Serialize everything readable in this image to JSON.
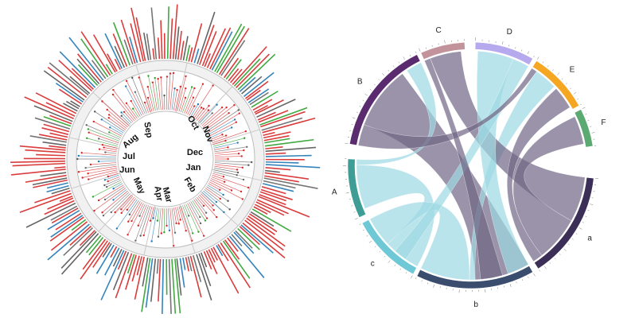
{
  "left_diagram": {
    "months": [
      "Oct",
      "Nov",
      "Dec",
      "Jan",
      "Feb",
      "Mar",
      "Apr",
      "May",
      "Jun",
      "Jul",
      "Aug",
      "Sep"
    ],
    "palette": [
      "#d62728",
      "#d62728",
      "#d62728",
      "#555555",
      "#1f77b4",
      "#2ca02c",
      "#d62728",
      "#666666"
    ]
  },
  "right_diagram": {
    "segments": [
      {
        "label": "A",
        "color": "#3e9d95"
      },
      {
        "label": "B",
        "color": "#5a2b6e"
      },
      {
        "label": "C",
        "color": "#c3939c"
      },
      {
        "label": "D",
        "color": "#b6a9ee"
      },
      {
        "label": "E",
        "color": "#f5a623"
      },
      {
        "label": "F",
        "color": "#5aaa72"
      },
      {
        "label": "a",
        "color": "#3b2f58"
      },
      {
        "label": "b",
        "color": "#3b4d6e"
      },
      {
        "label": "c",
        "color": "#6ec8d6"
      }
    ],
    "ribbon_colors": {
      "light": "#9dd9e3",
      "dark": "#6f6585"
    }
  }
}
